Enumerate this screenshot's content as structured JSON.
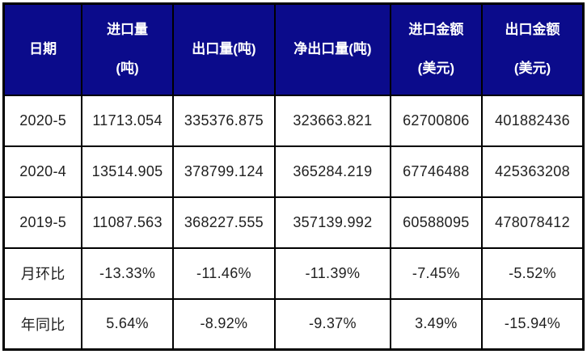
{
  "colors": {
    "header_background": "#0b0b8b",
    "header_text": "#ffffff",
    "border": "#000000",
    "cell_text": "#1f1f1f",
    "page_background": "#ffffff"
  },
  "chart_data": {
    "type": "table",
    "title": "",
    "columns": [
      [
        "日期"
      ],
      [
        "进口量",
        "(吨)"
      ],
      [
        "出口量(吨)"
      ],
      [
        "净出口量(吨)"
      ],
      [
        "进口金额",
        "(美元)"
      ],
      [
        "出口金额",
        "(美元)"
      ]
    ],
    "rows": [
      [
        "2020-5",
        "11713.054",
        "335376.875",
        "323663.821",
        "62700806",
        "401882436"
      ],
      [
        "2020-4",
        "13514.905",
        "378799.124",
        "365284.219",
        "67746488",
        "425363208"
      ],
      [
        "2019-5",
        "11087.563",
        "368227.555",
        "357139.992",
        "60588095",
        "478078412"
      ],
      [
        "月环比",
        "-13.33%",
        "-11.46%",
        "-11.39%",
        "-7.45%",
        "-5.52%"
      ],
      [
        "年同比",
        "5.64%",
        "-8.92%",
        "-9.37%",
        "3.49%",
        "-15.94%"
      ]
    ]
  }
}
